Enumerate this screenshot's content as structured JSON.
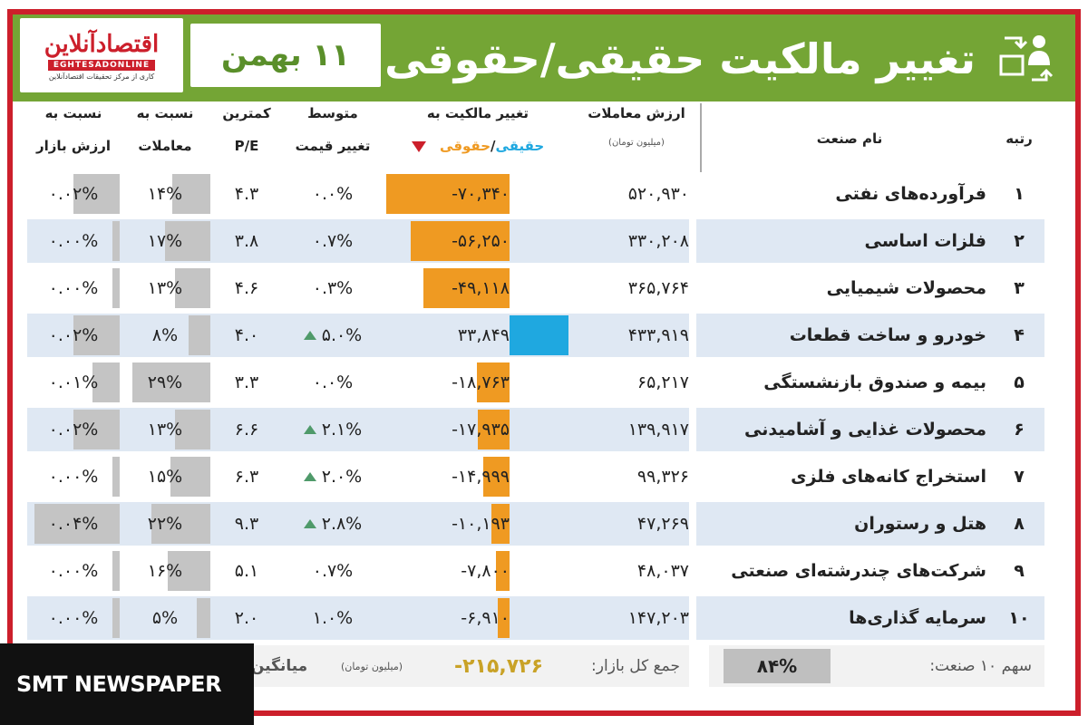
{
  "header": {
    "title": "تغییر مالکیت حقیقی/حقوقی",
    "date": "۱۱ بهمن",
    "logo_main": "اقتصادآنلاین",
    "logo_en": "EGHTESADONLINE",
    "logo_fa_sub": "کاری از مرکز تحقیقات اقتصادآنلاین"
  },
  "columns": {
    "rank": "رتبه",
    "industry": "نام صنعت",
    "trade_value_l1": "ارزش معاملات",
    "trade_value_unit": "(میلیون تومان)",
    "ownership_l1": "تغییر مالکیت به",
    "ownership_real": "حقیقی",
    "ownership_sep": "/",
    "ownership_legal": "حقوقی",
    "avg_l1": "متوسط",
    "avg_l2": "تغییر قیمت",
    "pe_l1": "کمترین",
    "pe_l2": "P/E",
    "trade_ratio_l1": "نسبت به",
    "trade_ratio_l2": "معاملات",
    "market_ratio_l1": "نسبت به",
    "market_ratio_l2": "ارزش بازار"
  },
  "rows": [
    {
      "rank": "۱",
      "name": "فرآورده‌های نفتی",
      "value": "۵۲۰,۹۳۰",
      "change": "-۷۰,۳۴۰",
      "change_num": -70340,
      "avg": "۰.۰%",
      "avg_up": false,
      "pe": "۴.۳",
      "trade_ratio": "۱۴%",
      "trade_ratio_num": 14,
      "market_ratio": "۰.۰۲%",
      "market_ratio_num": 0.02
    },
    {
      "rank": "۲",
      "name": "فلزات اساسی",
      "value": "۳۳۰,۲۰۸",
      "change": "-۵۶,۲۵۰",
      "change_num": -56250,
      "avg": "۰.۷%",
      "avg_up": false,
      "pe": "۳.۸",
      "trade_ratio": "۱۷%",
      "trade_ratio_num": 17,
      "market_ratio": "۰.۰۰%",
      "market_ratio_num": 0.0
    },
    {
      "rank": "۳",
      "name": "محصولات شیمیایی",
      "value": "۳۶۵,۷۶۴",
      "change": "-۴۹,۱۱۸",
      "change_num": -49118,
      "avg": "۰.۳%",
      "avg_up": false,
      "pe": "۴.۶",
      "trade_ratio": "۱۳%",
      "trade_ratio_num": 13,
      "market_ratio": "۰.۰۰%",
      "market_ratio_num": 0.0
    },
    {
      "rank": "۴",
      "name": "خودرو و ساخت قطعات",
      "value": "۴۳۳,۹۱۹",
      "change": "۳۳,۸۴۹",
      "change_num": 33849,
      "avg": "۵.۰%",
      "avg_up": true,
      "pe": "۴.۰",
      "trade_ratio": "۸%",
      "trade_ratio_num": 8,
      "market_ratio": "۰.۰۲%",
      "market_ratio_num": 0.02
    },
    {
      "rank": "۵",
      "name": "بیمه و صندوق بازنشستگی",
      "value": "۶۵,۲۱۷",
      "change": "-۱۸,۷۶۳",
      "change_num": -18763,
      "avg": "۰.۰%",
      "avg_up": false,
      "pe": "۳.۳",
      "trade_ratio": "۲۹%",
      "trade_ratio_num": 29,
      "market_ratio": "۰.۰۱%",
      "market_ratio_num": 0.01
    },
    {
      "rank": "۶",
      "name": "محصولات غذایی و آشامیدنی",
      "value": "۱۳۹,۹۱۷",
      "change": "-۱۷,۹۳۵",
      "change_num": -17935,
      "avg": "۲.۱%",
      "avg_up": true,
      "pe": "۶.۶",
      "trade_ratio": "۱۳%",
      "trade_ratio_num": 13,
      "market_ratio": "۰.۰۲%",
      "market_ratio_num": 0.02
    },
    {
      "rank": "۷",
      "name": "استخراج کانه‌های فلزی",
      "value": "۹۹,۳۲۶",
      "change": "-۱۴,۹۹۹",
      "change_num": -14999,
      "avg": "۲.۰%",
      "avg_up": true,
      "pe": "۶.۳",
      "trade_ratio": "۱۵%",
      "trade_ratio_num": 15,
      "market_ratio": "۰.۰۰%",
      "market_ratio_num": 0.0
    },
    {
      "rank": "۸",
      "name": "هتل و رستوران",
      "value": "۴۷,۲۶۹",
      "change": "-۱۰,۱۹۳",
      "change_num": -10193,
      "avg": "۲.۸%",
      "avg_up": true,
      "pe": "۹.۳",
      "trade_ratio": "۲۲%",
      "trade_ratio_num": 22,
      "market_ratio": "۰.۰۴%",
      "market_ratio_num": 0.04
    },
    {
      "rank": "۹",
      "name": "شرکت‌های چندرشته‌ای صنعتی",
      "value": "۴۸,۰۳۷",
      "change": "-۷,۸۰۰",
      "change_num": -7800,
      "avg": "۰.۷%",
      "avg_up": false,
      "pe": "۵.۱",
      "trade_ratio": "۱۶%",
      "trade_ratio_num": 16,
      "market_ratio": "۰.۰۰%",
      "market_ratio_num": 0.0
    },
    {
      "rank": "۱۰",
      "name": "سرمایه گذاری‌ها",
      "value": "۱۴۷,۲۰۳",
      "change": "-۶,۹۱۰",
      "change_num": -6910,
      "avg": "۱.۰%",
      "avg_up": false,
      "pe": "۲.۰",
      "trade_ratio": "۵%",
      "trade_ratio_num": 5,
      "market_ratio": "۰.۰۰%",
      "market_ratio_num": 0.0
    }
  ],
  "footer": {
    "share_label": "سهم ۱۰ صنعت:",
    "share_value": "۸۴%",
    "total_label": "جمع کل بازار:",
    "total_value": "-۲۱۵,۷۲۶",
    "total_unit": "(میلیون تومان)",
    "avg_label": "میانگین"
  },
  "watermark": "SMT NEWSPAPER",
  "colors": {
    "frame": "#cc1f2b",
    "header": "#74a535",
    "real": "#1fa8e0",
    "legal": "#ef9a22",
    "down_marker": "#cc1f2b",
    "up_marker": "#4f9a6a"
  }
}
